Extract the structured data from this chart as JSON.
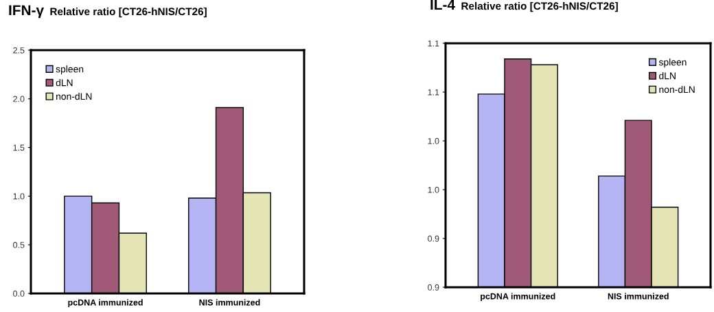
{
  "chart_data": [
    {
      "type": "bar",
      "title": "IFN-γ",
      "subtitle": "Relative ratio [CT26-hNIS/CT26]",
      "categories": [
        "pcDNA immunized",
        "NIS immunized"
      ],
      "series": [
        {
          "name": "spleen",
          "color": "#b4b4f4",
          "values": [
            1.0,
            0.98
          ]
        },
        {
          "name": "dLN",
          "color": "#a05a78",
          "values": [
            0.93,
            1.91
          ]
        },
        {
          "name": "non-dLN",
          "color": "#e4e4b4",
          "values": [
            0.62,
            1.035
          ]
        }
      ],
      "ylim": [
        0,
        2.5
      ],
      "yticks": [
        {
          "value": 0,
          "label": "0.0"
        },
        0.5,
        {
          "value": 1,
          "label": "1.0"
        },
        1.5,
        {
          "value": 2,
          "label": "2.0"
        },
        2.5
      ],
      "legend": "top left",
      "grid": false
    },
    {
      "type": "bar",
      "title": "IL-4",
      "subtitle": "Relative ratio [CT26-hNIS/CT26]",
      "categories": [
        "pcDNA immunized",
        "NIS immunized"
      ],
      "series": [
        {
          "name": "spleen",
          "color": "#b4b4f4",
          "values": [
            1.048,
            0.964
          ]
        },
        {
          "name": "dLN",
          "color": "#a05a78",
          "values": [
            1.084,
            1.021
          ]
        },
        {
          "name": "non-dLN",
          "color": "#e4e4b4",
          "values": [
            1.078,
            0.932
          ]
        }
      ],
      "ylim": [
        0.85,
        1.1
      ],
      "yticks": [
        {
          "value": 0.85,
          "label": "0.9"
        },
        {
          "value": 0.9,
          "label": "0.9"
        },
        {
          "value": 0.95,
          "label": "1.0"
        },
        {
          "value": 1.0,
          "label": "1.0"
        },
        {
          "value": 1.05,
          "label": "1.1"
        },
        {
          "value": 1.1,
          "label": "1.1"
        }
      ],
      "legend": "top right",
      "grid": false
    }
  ]
}
